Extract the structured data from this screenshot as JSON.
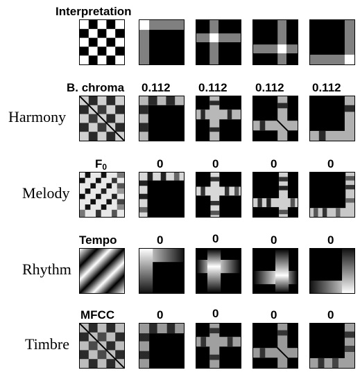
{
  "interpretation": {
    "title": "Interpretation"
  },
  "rows": [
    {
      "name": "Harmony",
      "header": "B. chroma",
      "values": [
        "0.112",
        "0.112",
        "0.112",
        "0.112"
      ]
    },
    {
      "name": "Melody",
      "header": "F",
      "header_sub": "0",
      "values": [
        "0",
        "0",
        "0",
        "0"
      ]
    },
    {
      "name": "Rhythm",
      "header": "Tempo",
      "values": [
        "0",
        "0",
        "0",
        "0"
      ]
    },
    {
      "name": "Timbre",
      "header": "MFCC",
      "values": [
        "0",
        "0",
        "0",
        "0"
      ]
    }
  ],
  "colors": {
    "background": "#ffffff",
    "dark": "#000000",
    "light": "#ffffff",
    "mid_gray": "#808080"
  }
}
